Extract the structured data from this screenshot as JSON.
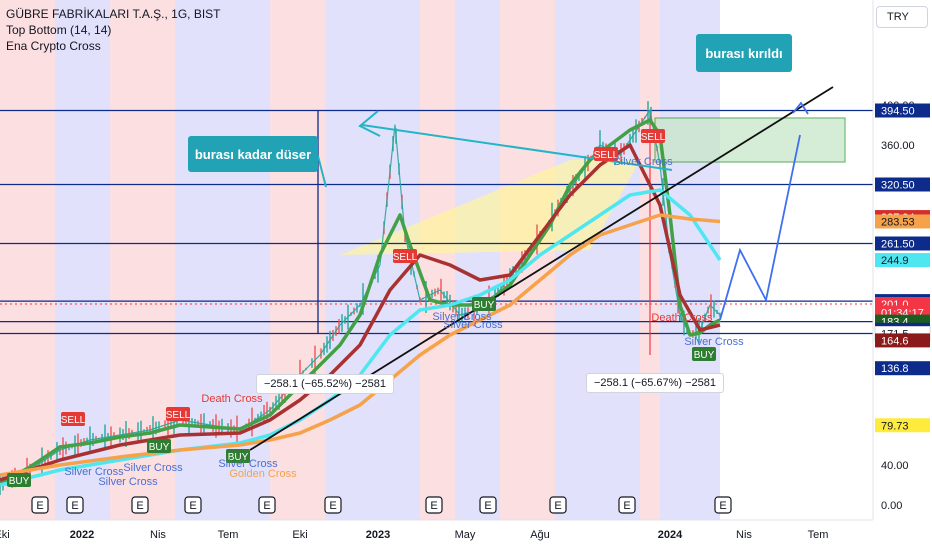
{
  "header": {
    "symbol_line": "GÜBRE FABRİKALARI T.A.Ş., 1G, BIST",
    "indicator_1": "Top Bottom  (14, 14)",
    "indicator_2": "Ena Crypto Cross",
    "currency": "TRY"
  },
  "annotations": {
    "callout_left": "burası kadar düser",
    "callout_right": "burası kırıldı",
    "measure_left": "−258.1 (−65.52%) −2581",
    "measure_right": "−258.1 (−65.67%) −2581"
  },
  "chart_data": {
    "type": "line",
    "y_axis": {
      "range": [
        -10,
        420
      ],
      "tick_labels": [
        "0.00",
        "40.00",
        "360.00",
        "400.00"
      ],
      "tick_values": [
        0,
        40,
        360,
        400
      ],
      "price_tags": [
        {
          "label": "394.50",
          "value": 394.5,
          "color": "#0d2b8a",
          "text": "#ffffff"
        },
        {
          "label": "320.50",
          "value": 320.5,
          "color": "#0d2b8a",
          "text": "#ffffff"
        },
        {
          "label": "287.94",
          "value": 287.94,
          "color": "#d32f2f",
          "text": "#ffffff"
        },
        {
          "label": "283.53",
          "value": 283.53,
          "color": "#f5a24a",
          "text": "#131722"
        },
        {
          "label": "261.50",
          "value": 261.5,
          "color": "#0d2b8a",
          "text": "#ffffff"
        },
        {
          "label": "244.9",
          "value": 244.9,
          "color": "#4ee6f0",
          "text": "#131722"
        },
        {
          "label": "203.9",
          "value": 203.9,
          "color": "#0d2b8a",
          "text": "#ffffff"
        },
        {
          "label": "201.0",
          "value": 201.0,
          "color": "#f23645",
          "text": "#ffffff"
        },
        {
          "label": "01:34:17",
          "value": 192.5,
          "color": "#f23645",
          "text": "#ffffff"
        },
        {
          "label": "183.4",
          "value": 183.4,
          "color": "#1b5e20",
          "text": "#ffffff"
        },
        {
          "label": "175.2",
          "value": 175.2,
          "color": "#0d2b8a",
          "text": "#ffffff"
        },
        {
          "label": "171.5",
          "value": 171.5,
          "color": "#ffffff",
          "text": "#131722"
        },
        {
          "label": "164.6",
          "value": 164.6,
          "color": "#8b1a1a",
          "text": "#ffffff"
        },
        {
          "label": "136.8",
          "value": 136.8,
          "color": "#0d2b8a",
          "text": "#ffffff"
        },
        {
          "label": "79.73",
          "value": 79.73,
          "color": "#ffeb3b",
          "text": "#131722"
        }
      ]
    },
    "x_axis": {
      "tick_labels": [
        "Eki",
        "2022",
        "Nis",
        "Tem",
        "Eki",
        "2023",
        "May",
        "Ağu",
        "2024",
        "Nis",
        "Tem"
      ],
      "tick_index": [
        2,
        82,
        158,
        228,
        300,
        378,
        465,
        540,
        670,
        744,
        818
      ]
    },
    "horizontal_levels": [
      394.5,
      320.5,
      261.5,
      203.9,
      183.4,
      171.5
    ],
    "series": [
      {
        "color": "#26a69a",
        "x": [
          0,
          30,
          60,
          90,
          120,
          150,
          180,
          210,
          240,
          270,
          300,
          320,
          340,
          360,
          380,
          395,
          405,
          420,
          440,
          460,
          480,
          500,
          520,
          540,
          560,
          580,
          600,
          620,
          640,
          650,
          660,
          670,
          680,
          690,
          700,
          710,
          720
        ],
        "values": [
          20,
          35,
          55,
          65,
          70,
          75,
          85,
          80,
          75,
          95,
          130,
          150,
          180,
          200,
          240,
          380,
          270,
          205,
          215,
          190,
          195,
          215,
          240,
          270,
          300,
          330,
          360,
          350,
          380,
          395,
          340,
          250,
          190,
          170,
          175,
          200,
          190
        ]
      },
      {
        "name": "",
        "color": "#43a047",
        "x": [
          0,
          30,
          60,
          90,
          120,
          150,
          180,
          210,
          240,
          270,
          300,
          320,
          340,
          360,
          380,
          400,
          410,
          430,
          450,
          470,
          490,
          510,
          530,
          550,
          570,
          590,
          610,
          630,
          650,
          660,
          670,
          680,
          690,
          700,
          710,
          720
        ],
        "values": [
          22,
          38,
          58,
          62,
          68,
          72,
          80,
          78,
          76,
          90,
          120,
          140,
          160,
          190,
          250,
          290,
          260,
          205,
          200,
          200,
          205,
          220,
          250,
          280,
          320,
          345,
          360,
          375,
          385,
          370,
          290,
          200,
          170,
          172,
          180,
          185
        ]
      },
      {
        "color": "#a83232",
        "x": [
          0,
          60,
          120,
          180,
          240,
          270,
          300,
          330,
          360,
          390,
          420,
          450,
          480,
          510,
          540,
          570,
          600,
          630,
          660,
          680,
          700,
          720
        ],
        "values": [
          25,
          45,
          60,
          70,
          72,
          85,
          105,
          130,
          160,
          215,
          250,
          240,
          225,
          230,
          270,
          310,
          340,
          360,
          300,
          210,
          175,
          180
        ]
      },
      {
        "color": "#4ee6f0",
        "x": [
          0,
          60,
          120,
          180,
          240,
          270,
          300,
          330,
          360,
          390,
          420,
          450,
          480,
          510,
          540,
          570,
          600,
          630,
          660,
          690,
          720
        ],
        "values": [
          20,
          35,
          45,
          55,
          62,
          70,
          85,
          105,
          130,
          170,
          195,
          200,
          210,
          225,
          250,
          270,
          290,
          310,
          315,
          290,
          245
        ]
      },
      {
        "color": "#f5a24a",
        "x": [
          0,
          60,
          120,
          180,
          240,
          270,
          300,
          330,
          360,
          390,
          420,
          450,
          480,
          510,
          540,
          570,
          600,
          630,
          660,
          690,
          720
        ],
        "values": [
          30,
          40,
          48,
          55,
          60,
          65,
          72,
          85,
          100,
          125,
          150,
          170,
          185,
          200,
          225,
          250,
          270,
          280,
          290,
          286,
          283.5
        ]
      }
    ],
    "projection": {
      "color": "#3d6ff0",
      "x": [
        720,
        740,
        766,
        800
      ],
      "values": [
        185,
        255,
        205,
        370
      ]
    },
    "signals": [
      {
        "label": "BUY",
        "x": 18,
        "value": 24,
        "color": "#2e7d32"
      },
      {
        "label": "SELL",
        "x": 72,
        "value": 85,
        "color": "#e53935"
      },
      {
        "label": "BUY",
        "x": 158,
        "value": 58,
        "color": "#2e7d32"
      },
      {
        "label": "SELL",
        "x": 177,
        "value": 90,
        "color": "#e53935"
      },
      {
        "label": "BUY",
        "x": 237,
        "value": 48,
        "color": "#2e7d32"
      },
      {
        "label": "SELL",
        "x": 404,
        "value": 248,
        "color": "#e53935"
      },
      {
        "label": "BUY",
        "x": 483,
        "value": 200,
        "color": "#2e7d32"
      },
      {
        "label": "SELL",
        "x": 605,
        "value": 350,
        "color": "#e53935"
      },
      {
        "label": "SELL",
        "x": 652,
        "value": 368,
        "color": "#e53935"
      },
      {
        "label": "BUY",
        "x": 703,
        "value": 150,
        "color": "#2e7d32"
      }
    ],
    "cross_labels": [
      {
        "label": "Silver Cross",
        "x": 94,
        "value": 30,
        "color": "#4a6fd0"
      },
      {
        "label": "Silver Cross",
        "x": 128,
        "value": 20,
        "color": "#4a6fd0"
      },
      {
        "label": "Silver Cross",
        "x": 153,
        "value": 34,
        "color": "#4a6fd0"
      },
      {
        "label": "Death Cross",
        "x": 232,
        "value": 103,
        "color": "#e53935"
      },
      {
        "label": "Silver Cross",
        "x": 248,
        "value": 38,
        "color": "#4a6fd0"
      },
      {
        "label": "Golden Cross",
        "x": 263,
        "value": 28,
        "color": "#f5a24a"
      },
      {
        "label": "Silver Cross",
        "x": 462,
        "value": 185,
        "color": "#4a6fd0"
      },
      {
        "label": "Silver Cross",
        "x": 473,
        "value": 177,
        "color": "#4a6fd0"
      },
      {
        "label": "Silver Cross",
        "x": 643,
        "value": 340,
        "color": "#4a6fd0"
      },
      {
        "label": "Death Cross",
        "x": 682,
        "value": 184,
        "color": "#e53935"
      },
      {
        "label": "Silver Cross",
        "x": 714,
        "value": 160,
        "color": "#4a6fd0"
      }
    ],
    "earnings_markers": {
      "label": "E",
      "x": [
        40,
        75,
        140,
        193,
        267,
        333,
        434,
        488,
        558,
        627,
        723
      ]
    }
  }
}
